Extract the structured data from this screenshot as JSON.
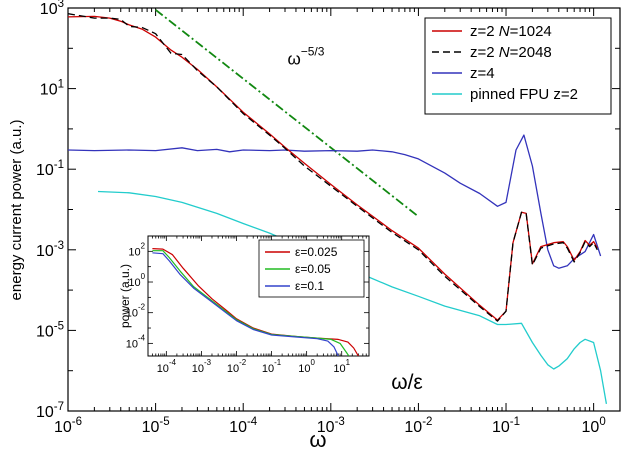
{
  "chart_data": [
    {
      "type": "line",
      "xlabel": "ω",
      "ylabel": "energy current power (a.u.)",
      "xscale": "log",
      "yscale": "log",
      "xlim": [
        1e-06,
        2
      ],
      "ylim": [
        1e-07,
        1000
      ],
      "x_ticks": [
        {
          "value": 1e-06,
          "base": "10",
          "exp": "-6"
        },
        {
          "value": 1e-05,
          "base": "10",
          "exp": "-5"
        },
        {
          "value": 0.0001,
          "base": "10",
          "exp": "-4"
        },
        {
          "value": 0.001,
          "base": "10",
          "exp": "-3"
        },
        {
          "value": 0.01,
          "base": "10",
          "exp": "-2"
        },
        {
          "value": 0.1,
          "base": "10",
          "exp": "-1"
        },
        {
          "value": 1,
          "base": "10",
          "exp": "0"
        }
      ],
      "y_ticks": [
        {
          "value": 1e-07,
          "base": "10",
          "exp": "-7"
        },
        {
          "value": 1e-05,
          "base": "10",
          "exp": "-5"
        },
        {
          "value": 0.001,
          "base": "10",
          "exp": "-3"
        },
        {
          "value": 0.1,
          "base": "10",
          "exp": "-1"
        },
        {
          "value": 10,
          "base": "10",
          "exp": "1"
        },
        {
          "value": 1000,
          "base": "10",
          "exp": "3"
        }
      ],
      "legend_position": "top-right",
      "annotation": {
        "base": "ω",
        "exp": "−5/3",
        "x": 0.00032,
        "y": 40
      },
      "reference_line": {
        "name": "ω^-5/3",
        "color": "#118811",
        "style": "dash-dot",
        "points": [
          [
            1e-05,
            900
          ],
          [
            0.01,
            0.0067
          ]
        ]
      },
      "series": [
        {
          "name": "z=2 N=1024",
          "label_prefix": "z=2 ",
          "label_italic": "N",
          "label_suffix": "=1024",
          "color": "#cc0000",
          "style": "solid",
          "points": [
            [
              1e-06,
              600
            ],
            [
              2e-06,
              620
            ],
            [
              3e-06,
              560
            ],
            [
              4e-06,
              470
            ],
            [
              5e-06,
              380
            ],
            [
              7e-06,
              300
            ],
            [
              1e-05,
              190
            ],
            [
              1.5e-05,
              90
            ],
            [
              2e-05,
              60
            ],
            [
              3e-05,
              30
            ],
            [
              5e-05,
              11
            ],
            [
              0.0001,
              2.6
            ],
            [
              0.0002,
              0.75
            ],
            [
              0.0003,
              0.35
            ],
            [
              0.0005,
              0.14
            ],
            [
              0.001,
              0.042
            ],
            [
              0.002,
              0.013
            ],
            [
              0.005,
              0.003
            ],
            [
              0.01,
              0.0011
            ],
            [
              0.02,
              0.00025
            ],
            [
              0.05,
              4.2e-05
            ],
            [
              0.08,
              1.8e-05
            ],
            [
              0.1,
              3e-05
            ],
            [
              0.12,
              0.0015
            ],
            [
              0.15,
              0.0085
            ],
            [
              0.17,
              0.008
            ],
            [
              0.2,
              0.00045
            ],
            [
              0.25,
              0.0012
            ],
            [
              0.35,
              0.0015
            ],
            [
              0.45,
              0.0016
            ],
            [
              0.5,
              0.0012
            ],
            [
              0.6,
              0.00055
            ],
            [
              0.7,
              0.0009
            ],
            [
              0.8,
              0.0017
            ],
            [
              0.9,
              0.0013
            ],
            [
              1.0,
              0.0016
            ],
            [
              1.1,
              0.0011
            ]
          ]
        },
        {
          "name": "z=2 N=2048",
          "label_prefix": "z=2 ",
          "label_italic": "N",
          "label_suffix": "=2048",
          "color": "#000000",
          "style": "dashed",
          "points": [
            [
              1e-06,
              720
            ],
            [
              2e-06,
              560
            ],
            [
              3e-06,
              560
            ],
            [
              4e-06,
              520
            ],
            [
              5e-06,
              350
            ],
            [
              7e-06,
              330
            ],
            [
              1e-05,
              230
            ],
            [
              1.5e-05,
              75
            ],
            [
              2e-05,
              70
            ],
            [
              3e-05,
              28
            ],
            [
              5e-05,
              11
            ],
            [
              0.0001,
              2.4
            ],
            [
              0.0002,
              0.7
            ],
            [
              0.0003,
              0.33
            ],
            [
              0.0005,
              0.12
            ],
            [
              0.001,
              0.038
            ],
            [
              0.002,
              0.012
            ],
            [
              0.005,
              0.0027
            ],
            [
              0.01,
              0.001
            ],
            [
              0.02,
              0.00022
            ],
            [
              0.05,
              3.9e-05
            ],
            [
              0.08,
              1.7e-05
            ],
            [
              0.1,
              3e-05
            ],
            [
              0.12,
              0.0015
            ],
            [
              0.15,
              0.0085
            ],
            [
              0.17,
              0.0078
            ],
            [
              0.2,
              0.00042
            ],
            [
              0.25,
              0.0011
            ],
            [
              0.35,
              0.0014
            ],
            [
              0.45,
              0.0015
            ],
            [
              0.5,
              0.0011
            ],
            [
              0.6,
              0.0005
            ],
            [
              0.7,
              0.00085
            ],
            [
              0.8,
              0.0016
            ],
            [
              0.9,
              0.0012
            ],
            [
              1.0,
              0.0015
            ],
            [
              1.1,
              0.001
            ]
          ]
        },
        {
          "name": "z=4",
          "color": "#3333bb",
          "style": "solid",
          "points": [
            [
              1e-06,
              0.3
            ],
            [
              2e-06,
              0.29
            ],
            [
              5e-06,
              0.3
            ],
            [
              1e-05,
              0.29
            ],
            [
              2e-05,
              0.34
            ],
            [
              3e-05,
              0.29
            ],
            [
              5e-05,
              0.31
            ],
            [
              7e-05,
              0.27
            ],
            [
              0.0001,
              0.3
            ],
            [
              0.0002,
              0.29
            ],
            [
              0.0003,
              0.3
            ],
            [
              0.0005,
              0.28
            ],
            [
              0.001,
              0.29
            ],
            [
              0.002,
              0.28
            ],
            [
              0.003,
              0.3
            ],
            [
              0.005,
              0.27
            ],
            [
              0.007,
              0.23
            ],
            [
              0.01,
              0.18
            ],
            [
              0.02,
              0.08
            ],
            [
              0.03,
              0.045
            ],
            [
              0.05,
              0.025
            ],
            [
              0.08,
              0.012
            ],
            [
              0.1,
              0.015
            ],
            [
              0.13,
              0.3
            ],
            [
              0.16,
              0.7
            ],
            [
              0.2,
              0.12
            ],
            [
              0.25,
              0.008
            ],
            [
              0.3,
              0.001
            ],
            [
              0.35,
              0.0004
            ],
            [
              0.4,
              0.00035
            ],
            [
              0.5,
              0.0004
            ],
            [
              0.6,
              0.0006
            ],
            [
              0.8,
              0.0009
            ],
            [
              1.0,
              0.0024
            ],
            [
              1.2,
              0.0007
            ]
          ]
        },
        {
          "name": "pinned FPU z=2",
          "color": "#22cccc",
          "style": "solid",
          "points": [
            [
              2.2e-06,
              0.028
            ],
            [
              5e-06,
              0.026
            ],
            [
              1e-05,
              0.021
            ],
            [
              2e-05,
              0.015
            ],
            [
              5e-05,
              0.008
            ],
            [
              0.0001,
              0.0045
            ],
            [
              0.0002,
              0.0026
            ],
            [
              0.0005,
              0.0011
            ],
            [
              0.001,
              0.00055
            ],
            [
              0.002,
              0.00028
            ],
            [
              0.005,
              0.00012
            ],
            [
              0.01,
              7e-05
            ],
            [
              0.02,
              4e-05
            ],
            [
              0.05,
              2.3e-05
            ],
            [
              0.08,
              1.4e-05
            ],
            [
              0.1,
              1.4e-05
            ],
            [
              0.15,
              1.5e-05
            ],
            [
              0.2,
              5e-06
            ],
            [
              0.25,
              2.4e-06
            ],
            [
              0.3,
              1.4e-06
            ],
            [
              0.35,
              1.1e-06
            ],
            [
              0.4,
              1.3e-06
            ],
            [
              0.5,
              2e-06
            ],
            [
              0.6,
              3.5e-06
            ],
            [
              0.7,
              5e-06
            ],
            [
              0.8,
              6e-06
            ],
            [
              1.0,
              5e-06
            ],
            [
              1.2,
              1e-06
            ],
            [
              1.4,
              1.5e-07
            ]
          ]
        }
      ]
    },
    {
      "type": "line",
      "xlabel": "ω/ε",
      "ylabel": "power (a.u.)",
      "xscale": "log",
      "yscale": "log",
      "xlim": [
        3e-05,
        60
      ],
      "ylim": [
        1.5e-05,
        1000
      ],
      "x_ticks": [
        {
          "value": 0.0001,
          "base": "10",
          "exp": "-4"
        },
        {
          "value": 0.001,
          "base": "10",
          "exp": "-3"
        },
        {
          "value": 0.01,
          "base": "10",
          "exp": "-2"
        },
        {
          "value": 0.1,
          "base": "10",
          "exp": "-1"
        },
        {
          "value": 1,
          "base": "10",
          "exp": "0"
        },
        {
          "value": 10,
          "base": "10",
          "exp": "1"
        }
      ],
      "y_ticks": [
        {
          "value": 0.0001,
          "base": "10",
          "exp": "-4"
        },
        {
          "value": 0.01,
          "base": "10",
          "exp": "-2"
        },
        {
          "value": 1,
          "base": "10",
          "exp": "0"
        },
        {
          "value": 100,
          "base": "10",
          "exp": "2"
        }
      ],
      "legend_position": "top-right",
      "series": [
        {
          "name": "ε=0.025",
          "color": "#cc0000",
          "points": [
            [
              4e-05,
              150
            ],
            [
              8e-05,
              140
            ],
            [
              0.00015,
              60
            ],
            [
              0.0003,
              8
            ],
            [
              0.0008,
              0.6
            ],
            [
              0.002,
              0.08
            ],
            [
              0.005,
              0.015
            ],
            [
              0.01,
              0.004
            ],
            [
              0.03,
              0.001
            ],
            [
              0.1,
              0.0004
            ],
            [
              0.5,
              0.00028
            ],
            [
              2,
              0.00022
            ],
            [
              8,
              0.00018
            ],
            [
              15,
              0.00012
            ],
            [
              22,
              5e-05
            ],
            [
              30,
              1.5e-05
            ]
          ]
        },
        {
          "name": "ε=0.05",
          "color": "#22bb22",
          "points": [
            [
              4e-05,
              110
            ],
            [
              8e-05,
              110
            ],
            [
              0.00012,
              40
            ],
            [
              0.00025,
              5
            ],
            [
              0.0006,
              0.5
            ],
            [
              0.002,
              0.06
            ],
            [
              0.005,
              0.012
            ],
            [
              0.01,
              0.0035
            ],
            [
              0.03,
              0.0009
            ],
            [
              0.1,
              0.00038
            ],
            [
              0.5,
              0.00028
            ],
            [
              2,
              0.00022
            ],
            [
              5,
              0.00018
            ],
            [
              9,
              0.0001
            ],
            [
              13,
              3e-05
            ],
            [
              16,
              1.5e-05
            ]
          ]
        },
        {
          "name": "ε=0.1",
          "color": "#3344cc",
          "points": [
            [
              4e-05,
              80
            ],
            [
              8e-05,
              70
            ],
            [
              0.00012,
              25
            ],
            [
              0.00025,
              3
            ],
            [
              0.0006,
              0.4
            ],
            [
              0.002,
              0.05
            ],
            [
              0.005,
              0.01
            ],
            [
              0.01,
              0.003
            ],
            [
              0.03,
              0.0008
            ],
            [
              0.1,
              0.00035
            ],
            [
              0.5,
              0.00026
            ],
            [
              2,
              0.0002
            ],
            [
              4,
              0.00014
            ],
            [
              6,
              6e-05
            ],
            [
              8,
              1.5e-05
            ]
          ]
        }
      ]
    }
  ]
}
